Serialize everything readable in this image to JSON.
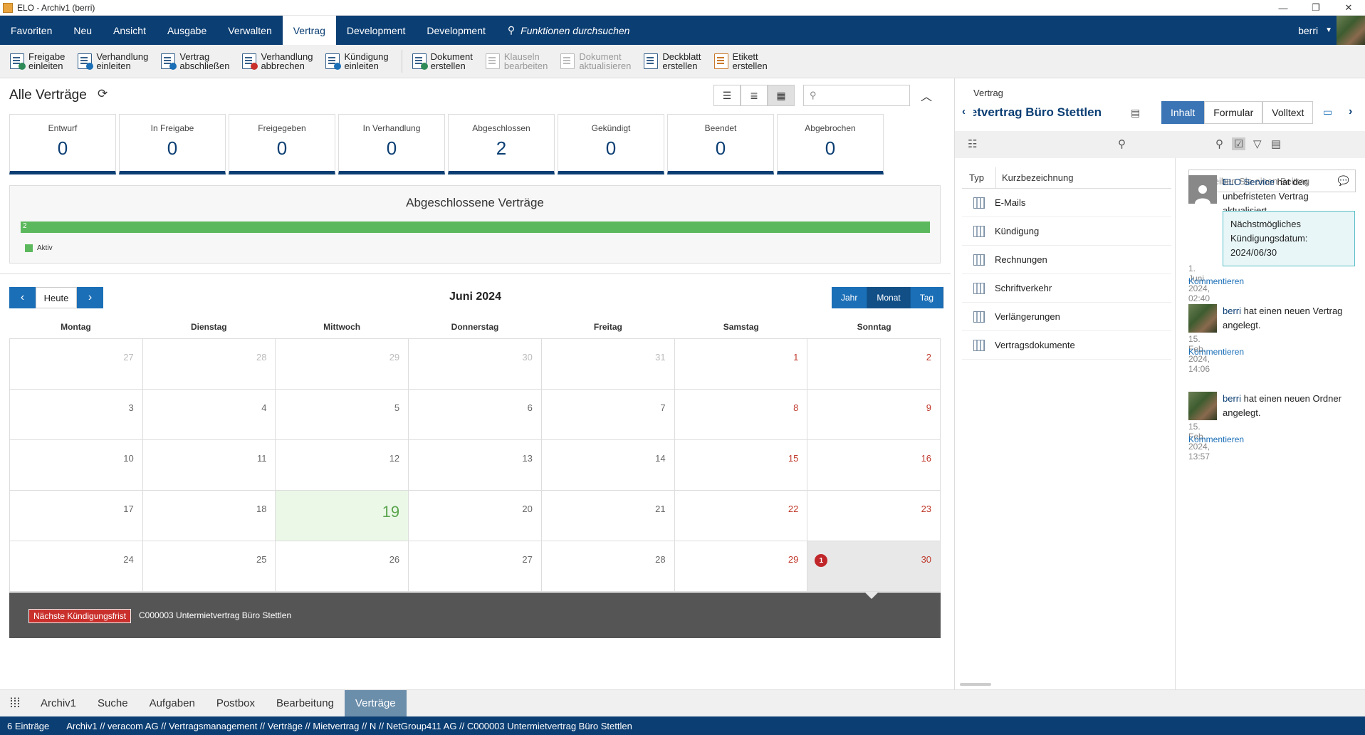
{
  "window": {
    "title": "ELO - Archiv1 (berri)",
    "minimize": "—",
    "maximize": "❐",
    "close": "✕"
  },
  "menu": {
    "items": [
      "Favoriten",
      "Neu",
      "Ansicht",
      "Ausgabe",
      "Verwalten",
      "Vertrag",
      "Development",
      "Development"
    ],
    "active_index": 5,
    "search_placeholder": "Funktionen durchsuchen",
    "user": "berri"
  },
  "toolbar": {
    "buttons": [
      {
        "l1": "Freigabe",
        "l2": "einleiten",
        "disabled": false
      },
      {
        "l1": "Verhandlung",
        "l2": "einleiten",
        "disabled": false
      },
      {
        "l1": "Vertrag",
        "l2": "abschließen",
        "disabled": false
      },
      {
        "l1": "Verhandlung",
        "l2": "abbrechen",
        "disabled": false
      },
      {
        "l1": "Kündigung",
        "l2": "einleiten",
        "disabled": false
      },
      {
        "l1": "Dokument",
        "l2": "erstellen",
        "disabled": false
      },
      {
        "l1": "Klauseln",
        "l2": "bearbeiten",
        "disabled": true
      },
      {
        "l1": "Dokument",
        "l2": "aktualisieren",
        "disabled": true
      },
      {
        "l1": "Deckblatt",
        "l2": "erstellen",
        "disabled": false
      },
      {
        "l1": "Etikett",
        "l2": "erstellen",
        "disabled": false
      }
    ]
  },
  "main": {
    "title": "Alle Verträge",
    "stats": [
      {
        "label": "Entwurf",
        "value": "0"
      },
      {
        "label": "In Freigabe",
        "value": "0"
      },
      {
        "label": "Freigegeben",
        "value": "0"
      },
      {
        "label": "In Verhandlung",
        "value": "0"
      },
      {
        "label": "Abgeschlossen",
        "value": "2"
      },
      {
        "label": "Gekündigt",
        "value": "0"
      },
      {
        "label": "Beendet",
        "value": "0"
      },
      {
        "label": "Abgebrochen",
        "value": "0"
      }
    ],
    "closed": {
      "title": "Abgeschlossene Verträge",
      "bar_value": "2",
      "legend": "Aktiv",
      "color": "#5cb85c"
    }
  },
  "calendar": {
    "today_label": "Heute",
    "month": "Juni 2024",
    "views": [
      "Jahr",
      "Monat",
      "Tag"
    ],
    "active_view": 1,
    "weekdays": [
      "Montag",
      "Dienstag",
      "Mittwoch",
      "Donnerstag",
      "Freitag",
      "Samstag",
      "Sonntag"
    ],
    "weeks": [
      [
        "27",
        "28",
        "29",
        "30",
        "31",
        "1",
        "2"
      ],
      [
        "3",
        "4",
        "5",
        "6",
        "7",
        "8",
        "9"
      ],
      [
        "10",
        "11",
        "12",
        "13",
        "14",
        "15",
        "16"
      ],
      [
        "17",
        "18",
        "19",
        "20",
        "21",
        "22",
        "23"
      ],
      [
        "24",
        "25",
        "26",
        "27",
        "28",
        "29",
        "30"
      ]
    ],
    "today": "19",
    "event_count": "1",
    "detail_tag": "Nächste Kündigungsfrist",
    "detail_text": "C000003 Untermietvertrag Büro Stettlen"
  },
  "right": {
    "category": "Vertrag",
    "title": "Untermietvertrag Büro Stettlen",
    "tabs": [
      "Inhalt",
      "Formular",
      "Volltext"
    ],
    "active_tab": 0,
    "columns": {
      "type": "Typ",
      "name": "Kurzbezeichnung"
    },
    "folders": [
      "E-Mails",
      "Kündigung",
      "Rechnungen",
      "Schriftverkehr",
      "Verlängerungen",
      "Vertragsdokumente"
    ],
    "feed_placeholder": "Schreiben Sie einen Beitrag",
    "feed": [
      {
        "user": "ELO Service",
        "text": " hat den unbefristeten Vertrag aktualisiert.",
        "note": "Nächstmögliches Kündigungsdatum: 2024/06/30",
        "time": "1. Juni 2024, 02:40",
        "link": "Kommentieren"
      },
      {
        "user": "berri",
        "text": " hat einen neuen Vertrag angelegt.",
        "time": "15. Feb. 2024, 14:06",
        "link": "Kommentieren"
      },
      {
        "user": "berri",
        "text": " hat einen neuen Ordner angelegt.",
        "time": "15. Feb. 2024, 13:57",
        "link": "Kommentieren"
      }
    ]
  },
  "bottom_tabs": {
    "items": [
      "Archiv1",
      "Suche",
      "Aufgaben",
      "Postbox",
      "Bearbeitung",
      "Verträge"
    ],
    "active_index": 5
  },
  "status": {
    "count": "6 Einträge",
    "path": "Archiv1 // veracom AG // Vertragsmanagement // Verträge // Mietvertrag // N // NetGroup411 AG // C000003 Untermietvertrag Büro Stettlen"
  }
}
